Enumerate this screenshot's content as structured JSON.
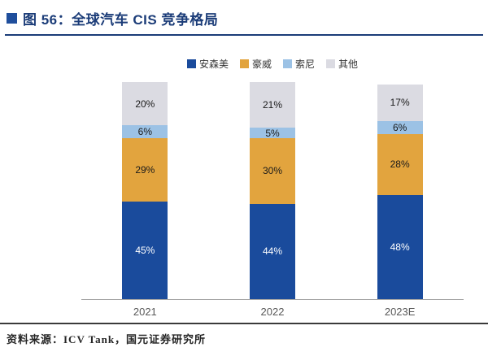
{
  "title": {
    "text": "图 56：全球汽车 CIS 竞争格局"
  },
  "chart_data": {
    "type": "bar",
    "stacked": true,
    "title": "全球汽车 CIS 竞争格局",
    "categories": [
      "2021",
      "2022",
      "2023E"
    ],
    "series": [
      {
        "name": "安森美",
        "color": "#1a4b9c",
        "text_color": "#ffffff",
        "values": [
          45,
          44,
          48
        ]
      },
      {
        "name": "豪威",
        "color": "#e2a43e",
        "text_color": "#1a1a1a",
        "values": [
          29,
          30,
          28
        ]
      },
      {
        "name": "索尼",
        "color": "#9cc2e5",
        "text_color": "#1a1a1a",
        "values": [
          6,
          5,
          6
        ]
      },
      {
        "name": "其他",
        "color": "#dbdbe2",
        "text_color": "#1a1a1a",
        "values": [
          20,
          21,
          17
        ]
      }
    ],
    "value_suffix": "%",
    "ylim": [
      0,
      100
    ],
    "legend_position": "top",
    "grid": false
  },
  "footer": {
    "source": "资料来源：ICV Tank，国元证券研究所"
  }
}
